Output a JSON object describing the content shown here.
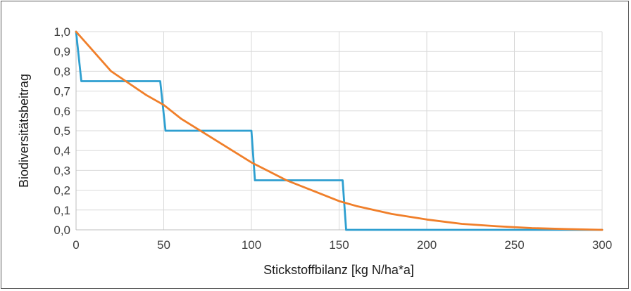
{
  "chart_data": {
    "type": "line",
    "xlabel": "Stickstoffbilanz [kg N/ha*a]",
    "ylabel": "Biodiversitätsbeitrag",
    "xlim": [
      0,
      300
    ],
    "ylim": [
      0,
      1
    ],
    "x_ticks": [
      "0",
      "50",
      "100",
      "150",
      "200",
      "250",
      "300"
    ],
    "y_ticks": [
      "0,0",
      "0,1",
      "0,2",
      "0,3",
      "0,4",
      "0,5",
      "0,6",
      "0,7",
      "0,8",
      "0,9",
      "1,0"
    ],
    "grid": "vertical and horizontal",
    "legend": "none",
    "series": [
      {
        "color": "#2e9fd0",
        "x": [
          0,
          3,
          48,
          51,
          100,
          102,
          152,
          154,
          300
        ],
        "y": [
          1.0,
          0.75,
          0.75,
          0.5,
          0.5,
          0.25,
          0.25,
          0.0,
          0.0
        ]
      },
      {
        "color": "#f07f2a",
        "x": [
          0,
          20,
          40,
          50,
          60,
          80,
          100,
          120,
          140,
          150,
          160,
          180,
          200,
          220,
          240,
          260,
          280,
          300
        ],
        "y": [
          1.0,
          0.8,
          0.68,
          0.63,
          0.56,
          0.45,
          0.34,
          0.25,
          0.18,
          0.145,
          0.12,
          0.08,
          0.052,
          0.03,
          0.018,
          0.009,
          0.004,
          0.0
        ]
      }
    ]
  }
}
